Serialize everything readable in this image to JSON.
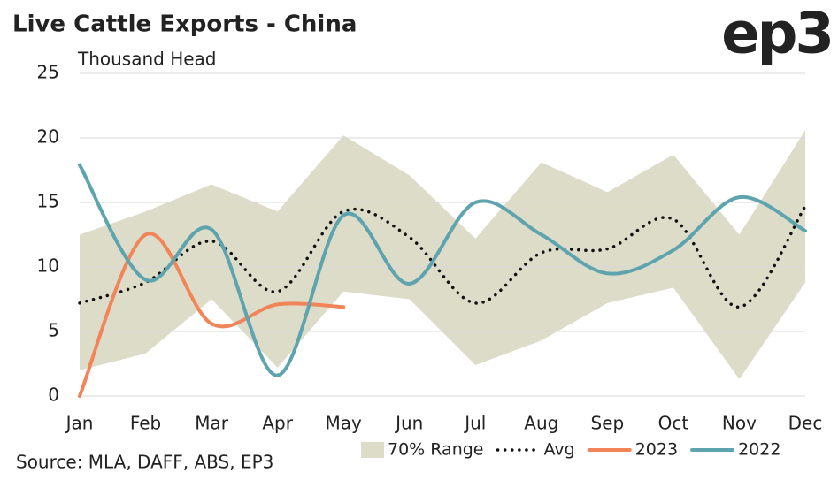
{
  "chart_data": {
    "type": "line",
    "title": "Live Cattle Exports - China",
    "y_label": "Thousand Head",
    "logo": "ep3",
    "source": "Source: MLA, DAFF, ABS, EP3",
    "categories": [
      "Jan",
      "Feb",
      "Mar",
      "Apr",
      "May",
      "Jun",
      "Jul",
      "Aug",
      "Sep",
      "Oct",
      "Nov",
      "Dec"
    ],
    "ylim": [
      0,
      25
    ],
    "yticks": [
      0,
      5,
      10,
      15,
      20,
      25
    ],
    "grid": true,
    "range": {
      "name": "70% Range",
      "color": "#dcdcc9",
      "low": [
        2,
        3.3,
        7.5,
        2.2,
        8.1,
        7.5,
        2.4,
        4.3,
        7.2,
        8.4,
        1.3,
        8.8
      ],
      "high": [
        12.5,
        14.3,
        16.4,
        14.3,
        20.2,
        17.1,
        12.2,
        18.1,
        15.8,
        18.7,
        12.5,
        20.6
      ]
    },
    "series": [
      {
        "name": "Avg",
        "color": "#111111",
        "style": "dotted",
        "values": [
          7.2,
          8.8,
          12,
          8.1,
          14.3,
          12.3,
          7.2,
          11.1,
          11.4,
          13.7,
          6.9,
          14.7
        ]
      },
      {
        "name": "2023",
        "color": "#f28459",
        "style": "solid",
        "values": [
          0,
          12.5,
          5.6,
          7.1,
          6.9,
          null,
          null,
          null,
          null,
          null,
          null,
          null
        ]
      },
      {
        "name": "2022",
        "color": "#5ea4ae",
        "style": "solid",
        "values": [
          17.9,
          9,
          12.9,
          1.6,
          14,
          8.7,
          15,
          12.5,
          9.5,
          11.3,
          15.4,
          12.8
        ]
      }
    ]
  }
}
